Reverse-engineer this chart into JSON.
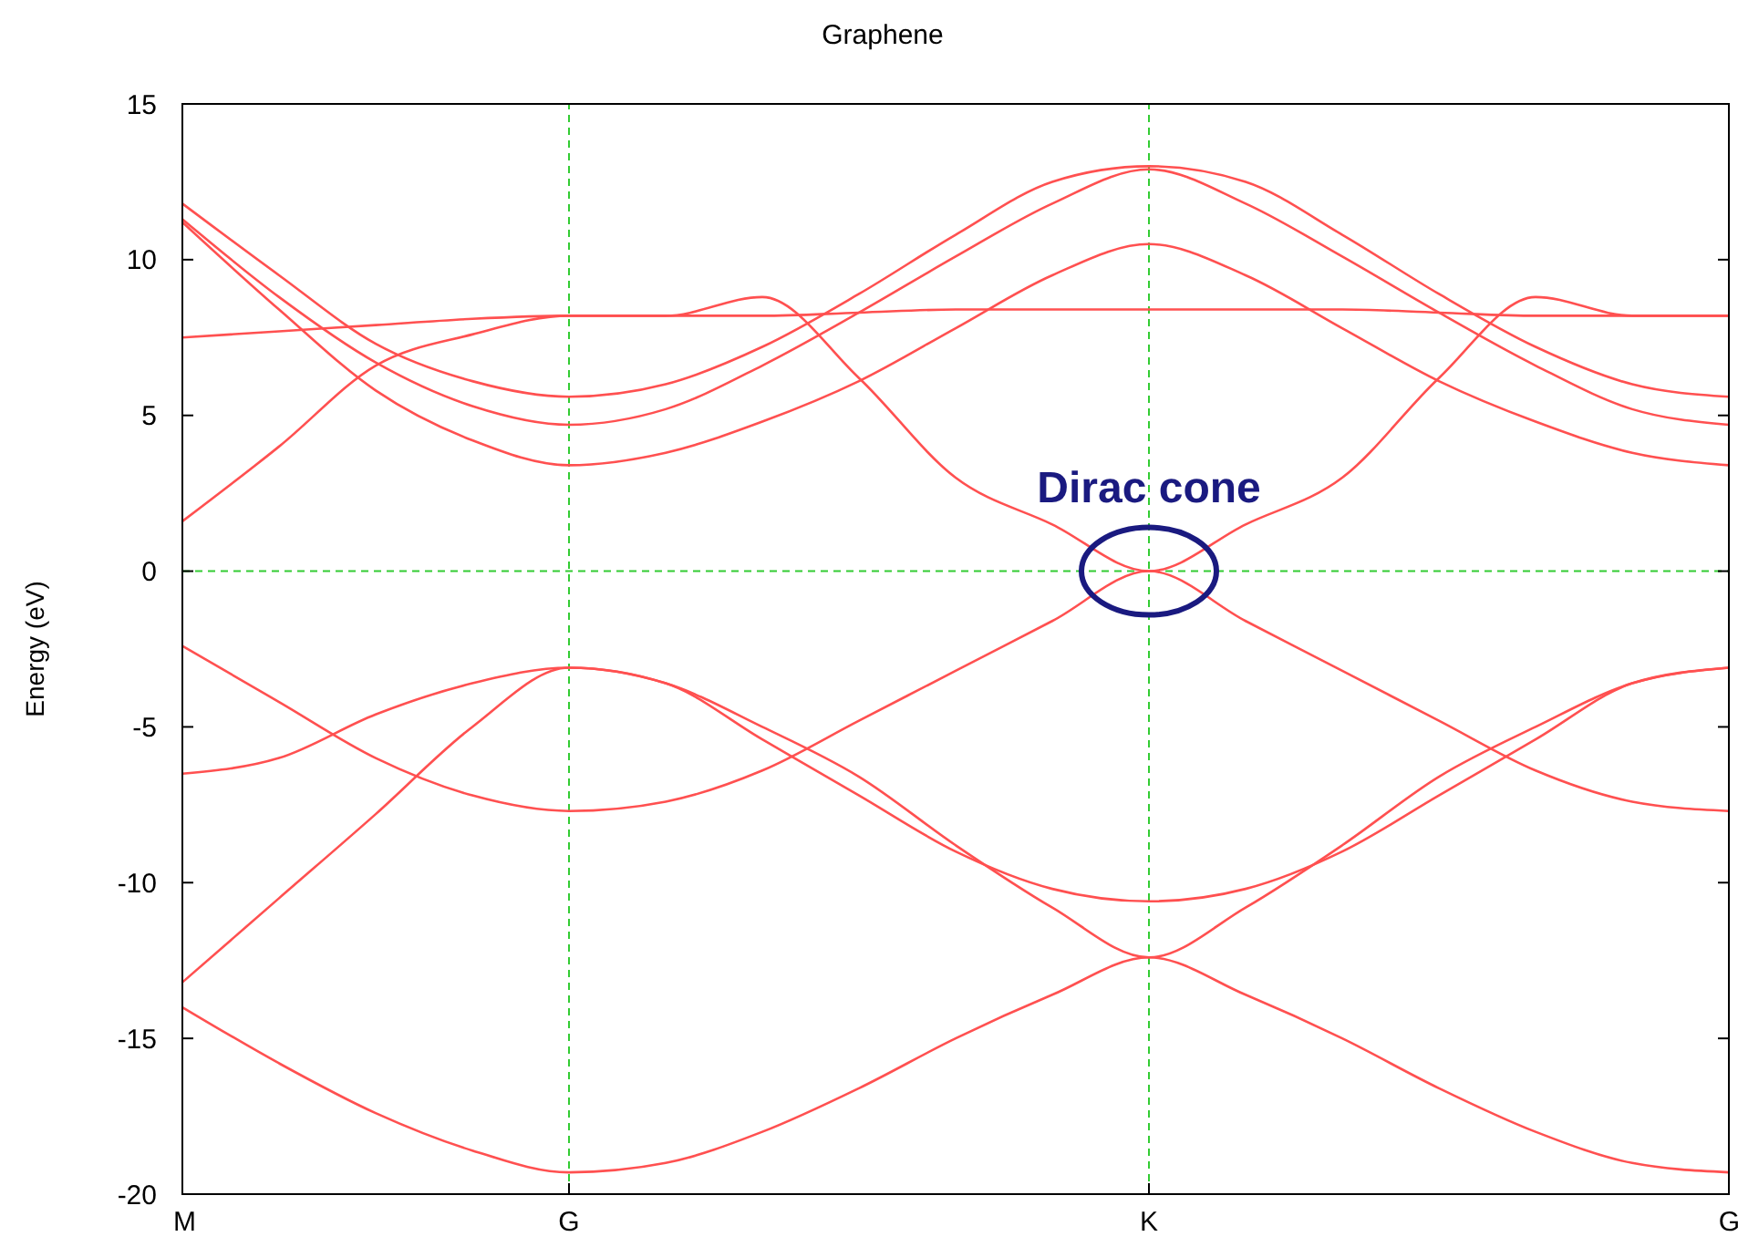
{
  "chart_data": {
    "type": "line",
    "title": "Graphene",
    "ylabel": "Energy (eV)",
    "categories": [
      "M",
      null,
      null,
      null,
      "G",
      null,
      null,
      null,
      null,
      null,
      "K",
      null,
      null,
      null,
      null,
      null,
      "G"
    ],
    "grid": "x",
    "ylim": [
      -20,
      15
    ],
    "yticks": [
      -20,
      -15,
      -10,
      -5,
      0,
      5,
      10,
      15
    ],
    "series": [
      {
        "color": "#ff5050",
        "values": [
          -14.0,
          -15.8,
          -17.4,
          -18.6,
          -19.3,
          -19.0,
          -18.0,
          -16.6,
          -15.0,
          -13.6,
          -12.4,
          -13.6,
          -15.0,
          -16.6,
          -18.0,
          -19.0,
          -19.3
        ]
      },
      {
        "color": "#ff5050",
        "values": [
          -13.2,
          -10.5,
          -7.8,
          -5.0,
          -3.1,
          -3.6,
          -5.0,
          -6.6,
          -8.8,
          -10.8,
          -12.4,
          -10.8,
          -8.8,
          -6.6,
          -5.0,
          -3.6,
          -3.1
        ]
      },
      {
        "color": "#ff5050",
        "values": [
          -6.5,
          -6.0,
          -4.6,
          -3.6,
          -3.1,
          -3.6,
          -5.4,
          -7.2,
          -9.0,
          -10.2,
          -10.6,
          -10.2,
          -9.0,
          -7.2,
          -5.4,
          -3.6,
          -3.1
        ]
      },
      {
        "color": "#ff5050",
        "values": [
          -2.4,
          -4.2,
          -6.0,
          -7.2,
          -7.7,
          -7.4,
          -6.4,
          -4.8,
          -3.2,
          -1.6,
          0,
          -1.6,
          -3.2,
          -4.8,
          -6.4,
          -7.4,
          -7.7
        ]
      },
      {
        "color": "#ff5050",
        "values": [
          1.6,
          4.0,
          6.6,
          7.6,
          8.2,
          8.2,
          8.8,
          6.2,
          3.0,
          1.5,
          0,
          1.5,
          3.0,
          6.2,
          8.8,
          8.2,
          8.2
        ]
      },
      {
        "color": "#ff5050",
        "values": [
          11.2,
          8.4,
          5.8,
          4.2,
          3.4,
          3.8,
          4.8,
          6.1,
          7.8,
          9.5,
          10.5,
          9.5,
          7.8,
          6.1,
          4.8,
          3.8,
          3.4
        ]
      },
      {
        "color": "#ff5050",
        "values": [
          11.3,
          8.8,
          6.7,
          5.3,
          4.7,
          5.2,
          6.6,
          8.3,
          10.1,
          11.8,
          12.9,
          11.8,
          10.1,
          8.3,
          6.6,
          5.2,
          4.7
        ]
      },
      {
        "color": "#ff5050",
        "values": [
          11.8,
          9.5,
          7.3,
          6.1,
          5.6,
          6.0,
          7.2,
          8.9,
          10.8,
          12.5,
          13.0,
          12.5,
          10.8,
          8.9,
          7.2,
          6.0,
          5.6
        ]
      },
      {
        "color": "#ff5050",
        "values": [
          7.5,
          7.7,
          7.9,
          8.1,
          8.2,
          8.2,
          8.2,
          8.3,
          8.4,
          8.4,
          8.4,
          8.4,
          8.4,
          8.3,
          8.2,
          8.2,
          8.2
        ]
      }
    ],
    "ref_lines": [
      {
        "axis": "y",
        "value": 0,
        "color": "#33cc33",
        "line_style": "dashed"
      }
    ],
    "annotations": [
      {
        "text": "Dirac cone",
        "x": "K",
        "y": 0
      }
    ]
  }
}
